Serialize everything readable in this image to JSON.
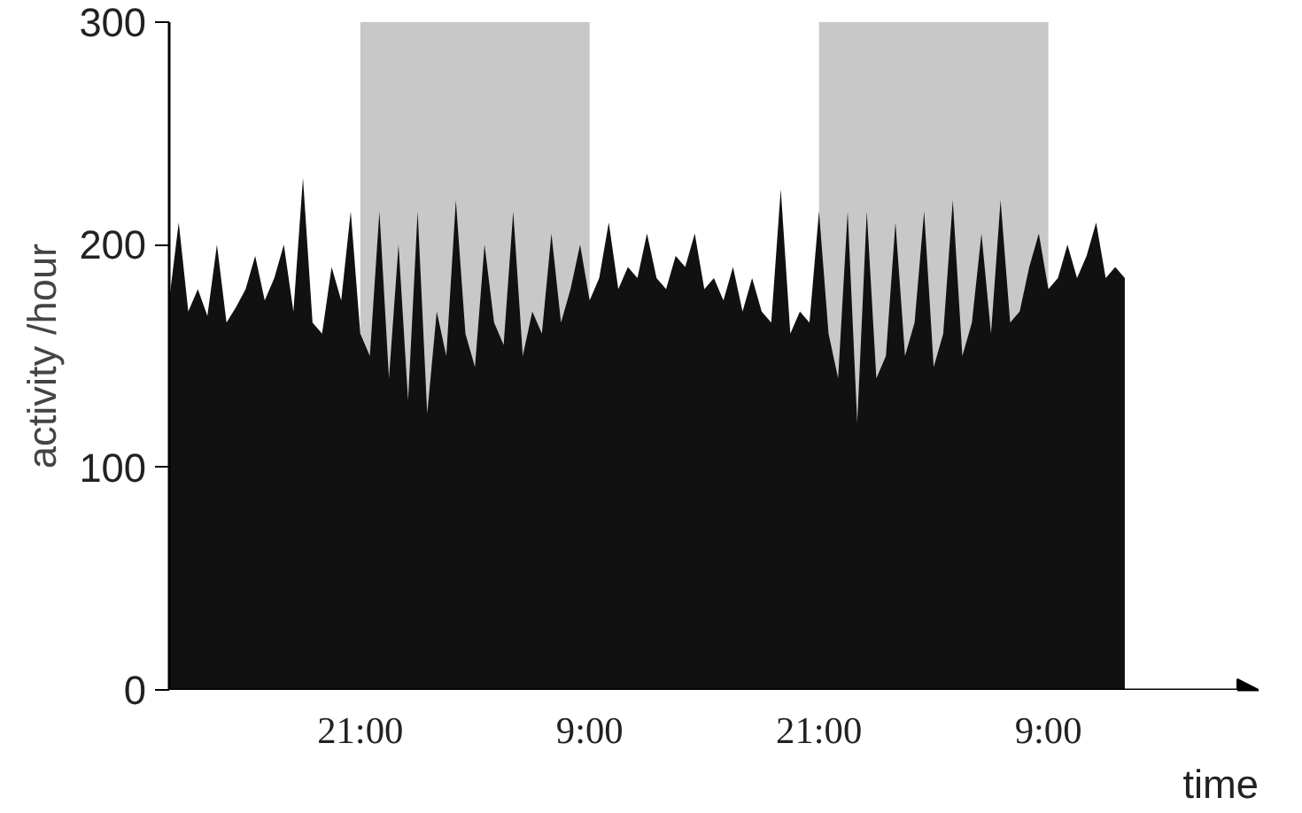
{
  "chart_data": {
    "type": "area",
    "xlabel": "time",
    "ylabel": "activity /hour",
    "x": [
      "2000-01-01T11:00",
      "2000-01-01T11:30",
      "2000-01-01T12:00",
      "2000-01-01T12:30",
      "2000-01-01T13:00",
      "2000-01-01T13:30",
      "2000-01-01T14:00",
      "2000-01-01T14:30",
      "2000-01-01T15:00",
      "2000-01-01T15:30",
      "2000-01-01T16:00",
      "2000-01-01T16:30",
      "2000-01-01T17:00",
      "2000-01-01T17:30",
      "2000-01-01T18:00",
      "2000-01-01T18:30",
      "2000-01-01T19:00",
      "2000-01-01T19:30",
      "2000-01-01T20:00",
      "2000-01-01T20:30",
      "2000-01-01T21:00",
      "2000-01-01T21:30",
      "2000-01-01T22:00",
      "2000-01-01T22:30",
      "2000-01-01T23:00",
      "2000-01-01T23:30",
      "2000-01-02T00:00",
      "2000-01-02T00:30",
      "2000-01-02T01:00",
      "2000-01-02T01:30",
      "2000-01-02T02:00",
      "2000-01-02T02:30",
      "2000-01-02T03:00",
      "2000-01-02T03:30",
      "2000-01-02T04:00",
      "2000-01-02T04:30",
      "2000-01-02T05:00",
      "2000-01-02T05:30",
      "2000-01-02T06:00",
      "2000-01-02T06:30",
      "2000-01-02T07:00",
      "2000-01-02T07:30",
      "2000-01-02T08:00",
      "2000-01-02T08:30",
      "2000-01-02T09:00",
      "2000-01-02T09:30",
      "2000-01-02T10:00",
      "2000-01-02T10:30",
      "2000-01-02T11:00",
      "2000-01-02T11:30",
      "2000-01-02T12:00",
      "2000-01-02T12:30",
      "2000-01-02T13:00",
      "2000-01-02T13:30",
      "2000-01-02T14:00",
      "2000-01-02T14:30",
      "2000-01-02T15:00",
      "2000-01-02T15:30",
      "2000-01-02T16:00",
      "2000-01-02T16:30",
      "2000-01-02T17:00",
      "2000-01-02T17:30",
      "2000-01-02T18:00",
      "2000-01-02T18:30",
      "2000-01-02T19:00",
      "2000-01-02T19:30",
      "2000-01-02T20:00",
      "2000-01-02T20:30",
      "2000-01-02T21:00",
      "2000-01-02T21:30",
      "2000-01-02T22:00",
      "2000-01-02T22:30",
      "2000-01-02T23:00",
      "2000-01-02T23:30",
      "2000-01-03T00:00",
      "2000-01-03T00:30",
      "2000-01-03T01:00",
      "2000-01-03T01:30",
      "2000-01-03T02:00",
      "2000-01-03T02:30",
      "2000-01-03T03:00",
      "2000-01-03T03:30",
      "2000-01-03T04:00",
      "2000-01-03T04:30",
      "2000-01-03T05:00",
      "2000-01-03T05:30",
      "2000-01-03T06:00",
      "2000-01-03T06:30",
      "2000-01-03T07:00",
      "2000-01-03T07:30",
      "2000-01-03T08:00",
      "2000-01-03T08:30",
      "2000-01-03T09:00",
      "2000-01-03T09:30",
      "2000-01-03T10:00",
      "2000-01-03T10:30",
      "2000-01-03T11:00",
      "2000-01-03T11:30",
      "2000-01-03T12:00",
      "2000-01-03T12:30",
      "2000-01-03T13:00"
    ],
    "series": [
      {
        "color": "#111111",
        "values": [
          175,
          210,
          170,
          180,
          168,
          200,
          165,
          172,
          180,
          195,
          175,
          185,
          200,
          170,
          230,
          165,
          160,
          190,
          175,
          215,
          160,
          150,
          215,
          140,
          200,
          130,
          215,
          124,
          170,
          150,
          220,
          160,
          145,
          200,
          165,
          155,
          215,
          150,
          170,
          160,
          205,
          165,
          180,
          200,
          175,
          185,
          210,
          180,
          190,
          185,
          205,
          185,
          180,
          195,
          190,
          205,
          180,
          185,
          175,
          190,
          170,
          185,
          170,
          165,
          225,
          160,
          170,
          165,
          215,
          160,
          140,
          215,
          120,
          215,
          140,
          150,
          210,
          150,
          165,
          215,
          145,
          160,
          220,
          150,
          165,
          205,
          160,
          220,
          165,
          170,
          190,
          205,
          180,
          185,
          200,
          185,
          195,
          210,
          185,
          190,
          185
        ]
      }
    ],
    "bands": [
      {
        "axis": "x",
        "from": "2000-01-01T21:00",
        "to": "2000-01-02T09:00",
        "color": "#c8c8c8"
      },
      {
        "axis": "x",
        "from": "2000-01-02T21:00",
        "to": "2000-01-03T09:00",
        "color": "#c8c8c8"
      }
    ],
    "xlim": [
      "2000-01-01T11:00",
      "2000-01-03T20:00"
    ],
    "ylim": [
      0,
      300
    ],
    "xticks": [
      {
        "value": "2000-01-01T21:00",
        "label": "21:00"
      },
      {
        "value": "2000-01-02T09:00",
        "label": "9:00"
      },
      {
        "value": "2000-01-02T21:00",
        "label": "21:00"
      },
      {
        "value": "2000-01-03T09:00",
        "label": "9:00"
      }
    ],
    "yticks": [
      0,
      100,
      200,
      300
    ],
    "grid": false
  }
}
